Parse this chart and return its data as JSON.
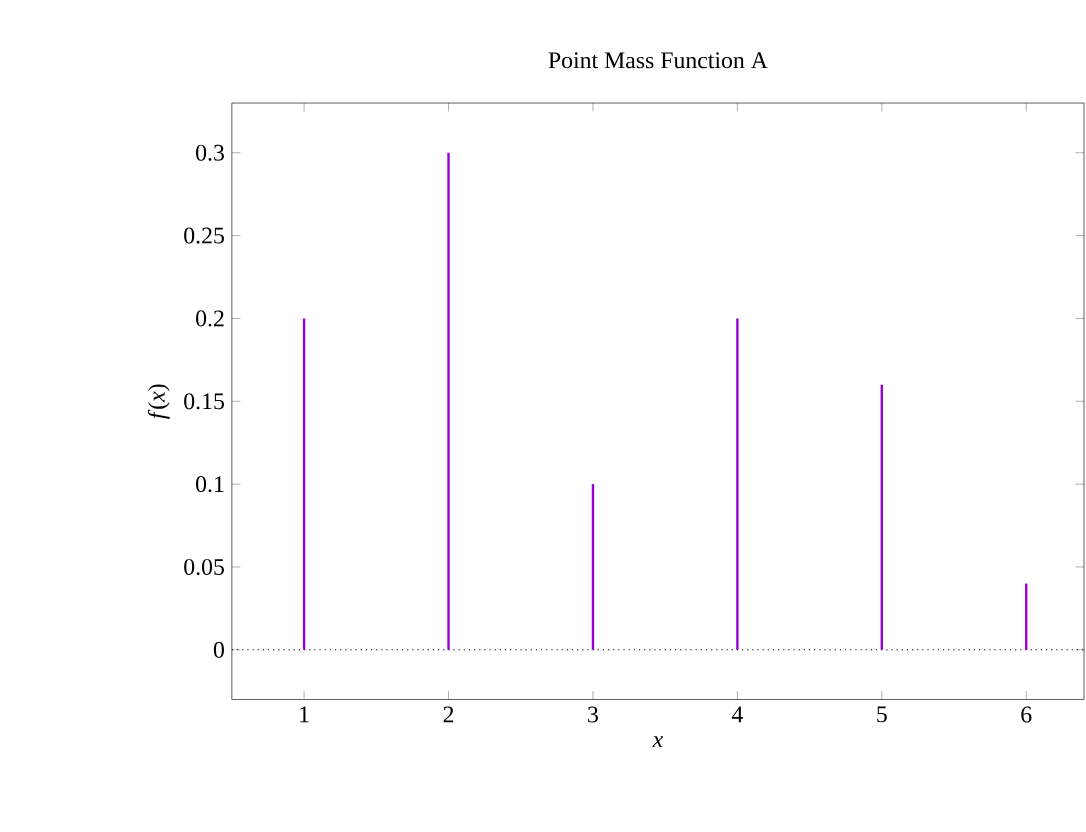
{
  "chart_data": {
    "type": "bar",
    "title": "Point Mass Function A",
    "xlabel": "x",
    "ylabel": "*f*(*x*)",
    "x": [
      1,
      2,
      3,
      4,
      5,
      6
    ],
    "values": [
      0.2,
      0.3,
      0.1,
      0.2,
      0.16,
      0.04
    ],
    "color": "#9400d3",
    "xlim": [
      0.5,
      6.4
    ],
    "ylim": [
      -0.03,
      0.33
    ],
    "xticks": [
      1,
      2,
      3,
      4,
      5,
      6
    ],
    "yticks": [
      0,
      0.05,
      0.1,
      0.15,
      0.2,
      0.25,
      0.3
    ],
    "ref_lines": [
      {
        "axis": "y",
        "value": 0,
        "color": "#000000",
        "line_style": "dotted"
      }
    ],
    "grid": false
  }
}
